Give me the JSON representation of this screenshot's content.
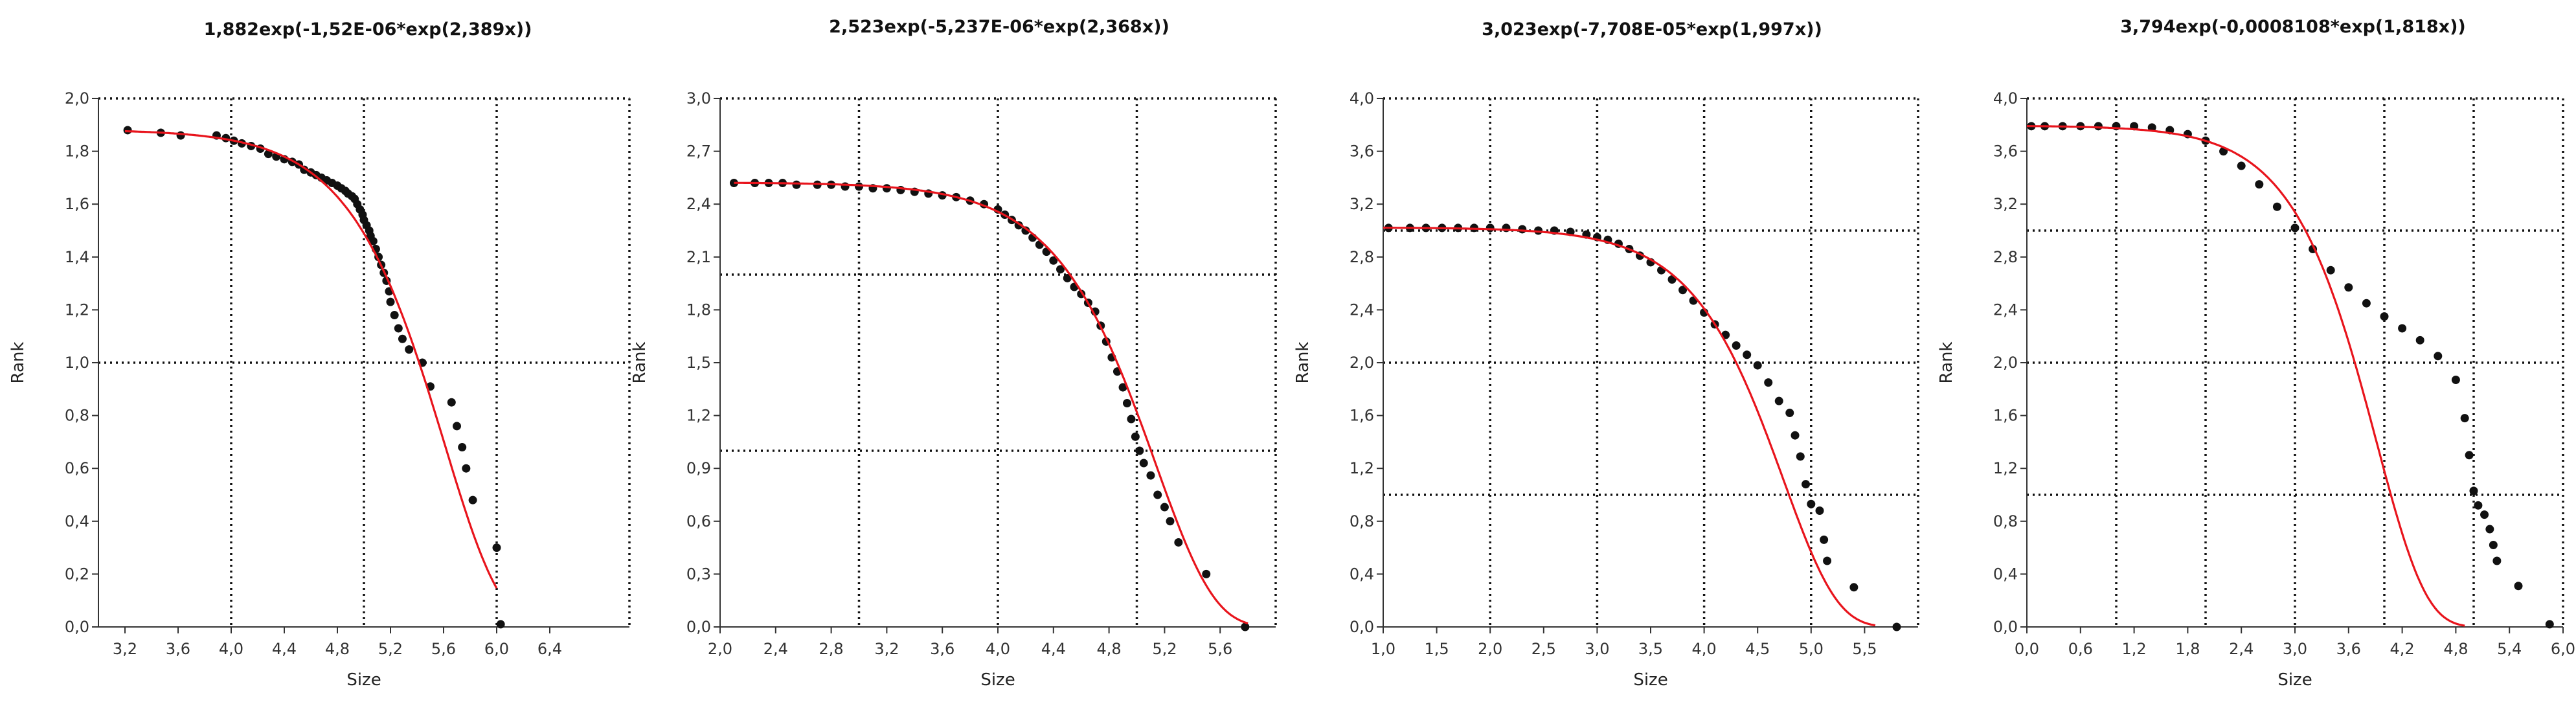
{
  "chart_data": [
    {
      "type": "scatter",
      "title": "1,882exp(-1,52E-06*exp(2,389x))",
      "xlabel": "Size",
      "ylabel": "Rank",
      "xlim": [
        3.0,
        7.0
      ],
      "ylim": [
        0.0,
        2.0
      ],
      "xticks": [
        "3,2",
        "3,6",
        "4,0",
        "4,4",
        "4,8",
        "5,2",
        "5,6",
        "6,0",
        "6,4"
      ],
      "yticks": [
        "0,0",
        "0,2",
        "0,4",
        "0,6",
        "0,8",
        "1,0",
        "1,2",
        "1,4",
        "1,6",
        "1,8",
        "2,0"
      ],
      "grid_x": [
        4.0,
        5.0,
        6.0
      ],
      "grid_y": [
        1.0
      ],
      "fit": {
        "name": "fit",
        "color": "#e8141c",
        "a": 1.882,
        "b": 1.52e-06,
        "c": 2.389,
        "x_range": [
          3.2,
          6.0
        ]
      },
      "series": [
        {
          "name": "observed",
          "color": "#111111",
          "points": [
            [
              3.22,
              1.88
            ],
            [
              3.47,
              1.87
            ],
            [
              3.62,
              1.86
            ],
            [
              3.89,
              1.86
            ],
            [
              3.96,
              1.85
            ],
            [
              4.02,
              1.84
            ],
            [
              4.08,
              1.83
            ],
            [
              4.15,
              1.82
            ],
            [
              4.22,
              1.81
            ],
            [
              4.28,
              1.79
            ],
            [
              4.34,
              1.78
            ],
            [
              4.4,
              1.77
            ],
            [
              4.46,
              1.76
            ],
            [
              4.51,
              1.75
            ],
            [
              4.55,
              1.73
            ],
            [
              4.6,
              1.72
            ],
            [
              4.64,
              1.71
            ],
            [
              4.68,
              1.7
            ],
            [
              4.72,
              1.69
            ],
            [
              4.76,
              1.68
            ],
            [
              4.8,
              1.67
            ],
            [
              4.83,
              1.66
            ],
            [
              4.86,
              1.65
            ],
            [
              4.88,
              1.64
            ],
            [
              4.91,
              1.63
            ],
            [
              4.93,
              1.62
            ],
            [
              4.95,
              1.6
            ],
            [
              4.97,
              1.58
            ],
            [
              4.99,
              1.56
            ],
            [
              5.0,
              1.54
            ],
            [
              5.02,
              1.52
            ],
            [
              5.04,
              1.5
            ],
            [
              5.05,
              1.48
            ],
            [
              5.07,
              1.46
            ],
            [
              5.09,
              1.43
            ],
            [
              5.11,
              1.4
            ],
            [
              5.13,
              1.37
            ],
            [
              5.15,
              1.34
            ],
            [
              5.17,
              1.31
            ],
            [
              5.19,
              1.27
            ],
            [
              5.2,
              1.23
            ],
            [
              5.23,
              1.18
            ],
            [
              5.26,
              1.13
            ],
            [
              5.29,
              1.09
            ],
            [
              5.34,
              1.05
            ],
            [
              5.44,
              1.0
            ],
            [
              5.5,
              0.91
            ],
            [
              5.66,
              0.85
            ],
            [
              5.7,
              0.76
            ],
            [
              5.74,
              0.68
            ],
            [
              5.77,
              0.6
            ],
            [
              5.82,
              0.48
            ],
            [
              6.0,
              0.3
            ],
            [
              6.03,
              0.01
            ]
          ]
        }
      ]
    },
    {
      "type": "scatter",
      "title": "2,523exp(-5,237E-06*exp(2,368x))",
      "xlabel": "Size",
      "ylabel": "Rank",
      "xlim": [
        2.0,
        6.0
      ],
      "ylim": [
        0.0,
        3.0
      ],
      "xticks": [
        "2,0",
        "2,4",
        "2,8",
        "3,2",
        "3,6",
        "4,0",
        "4,4",
        "4,8",
        "5,2",
        "5,6"
      ],
      "yticks": [
        "0,0",
        "0,3",
        "0,6",
        "0,9",
        "1,2",
        "1,5",
        "1,8",
        "2,1",
        "2,4",
        "2,7",
        "3,0"
      ],
      "grid_x": [
        3.0,
        4.0,
        5.0
      ],
      "grid_y": [
        1.0,
        2.0
      ],
      "fit": {
        "name": "fit",
        "color": "#e8141c",
        "a": 2.523,
        "b": 5.237e-06,
        "c": 2.368,
        "x_range": [
          2.1,
          5.8
        ]
      },
      "series": [
        {
          "name": "observed",
          "color": "#111111",
          "points": [
            [
              2.1,
              2.52
            ],
            [
              2.25,
              2.52
            ],
            [
              2.35,
              2.52
            ],
            [
              2.45,
              2.52
            ],
            [
              2.55,
              2.51
            ],
            [
              2.7,
              2.51
            ],
            [
              2.8,
              2.51
            ],
            [
              2.9,
              2.5
            ],
            [
              3.0,
              2.5
            ],
            [
              3.1,
              2.49
            ],
            [
              3.2,
              2.49
            ],
            [
              3.3,
              2.48
            ],
            [
              3.4,
              2.47
            ],
            [
              3.5,
              2.46
            ],
            [
              3.6,
              2.45
            ],
            [
              3.7,
              2.44
            ],
            [
              3.8,
              2.42
            ],
            [
              3.9,
              2.4
            ],
            [
              4.0,
              2.37
            ],
            [
              4.05,
              2.34
            ],
            [
              4.1,
              2.31
            ],
            [
              4.15,
              2.28
            ],
            [
              4.2,
              2.25
            ],
            [
              4.25,
              2.21
            ],
            [
              4.3,
              2.17
            ],
            [
              4.35,
              2.13
            ],
            [
              4.4,
              2.08
            ],
            [
              4.45,
              2.03
            ],
            [
              4.5,
              1.98
            ],
            [
              4.55,
              1.93
            ],
            [
              4.6,
              1.89
            ],
            [
              4.65,
              1.84
            ],
            [
              4.7,
              1.79
            ],
            [
              4.74,
              1.71
            ],
            [
              4.78,
              1.62
            ],
            [
              4.82,
              1.53
            ],
            [
              4.86,
              1.45
            ],
            [
              4.9,
              1.36
            ],
            [
              4.93,
              1.27
            ],
            [
              4.96,
              1.18
            ],
            [
              4.99,
              1.08
            ],
            [
              5.02,
              1.0
            ],
            [
              5.05,
              0.93
            ],
            [
              5.1,
              0.86
            ],
            [
              5.15,
              0.75
            ],
            [
              5.2,
              0.68
            ],
            [
              5.24,
              0.6
            ],
            [
              5.3,
              0.48
            ],
            [
              5.5,
              0.3
            ],
            [
              5.78,
              0.0
            ]
          ]
        }
      ]
    },
    {
      "type": "scatter",
      "title": "3,023exp(-7,708E-05*exp(1,997x))",
      "xlabel": "Size",
      "ylabel": "Rank",
      "xlim": [
        1.0,
        6.0
      ],
      "ylim": [
        0.0,
        4.0
      ],
      "xticks": [
        "1,0",
        "1,5",
        "2,0",
        "2,5",
        "3,0",
        "3,5",
        "4,0",
        "4,5",
        "5,0",
        "5,5"
      ],
      "yticks": [
        "0,0",
        "0,4",
        "0,8",
        "1,2",
        "1,6",
        "2,0",
        "2,4",
        "2,8",
        "3,2",
        "3,6",
        "4,0"
      ],
      "grid_x": [
        2.0,
        3.0,
        4.0,
        5.0
      ],
      "grid_y": [
        1.0,
        2.0,
        3.0
      ],
      "fit": {
        "name": "fit",
        "color": "#e8141c",
        "a": 3.023,
        "b": 7.708e-05,
        "c": 1.997,
        "x_range": [
          1.0,
          5.6
        ]
      },
      "series": [
        {
          "name": "observed",
          "color": "#111111",
          "points": [
            [
              1.05,
              3.02
            ],
            [
              1.25,
              3.02
            ],
            [
              1.4,
              3.02
            ],
            [
              1.55,
              3.02
            ],
            [
              1.7,
              3.02
            ],
            [
              1.85,
              3.02
            ],
            [
              2.0,
              3.02
            ],
            [
              2.15,
              3.02
            ],
            [
              2.3,
              3.01
            ],
            [
              2.45,
              3.0
            ],
            [
              2.6,
              3.0
            ],
            [
              2.75,
              2.99
            ],
            [
              2.9,
              2.97
            ],
            [
              3.0,
              2.95
            ],
            [
              3.1,
              2.93
            ],
            [
              3.2,
              2.9
            ],
            [
              3.3,
              2.86
            ],
            [
              3.4,
              2.81
            ],
            [
              3.5,
              2.76
            ],
            [
              3.6,
              2.7
            ],
            [
              3.7,
              2.63
            ],
            [
              3.8,
              2.55
            ],
            [
              3.9,
              2.47
            ],
            [
              4.0,
              2.38
            ],
            [
              4.1,
              2.29
            ],
            [
              4.2,
              2.21
            ],
            [
              4.3,
              2.13
            ],
            [
              4.4,
              2.06
            ],
            [
              4.5,
              1.98
            ],
            [
              4.6,
              1.85
            ],
            [
              4.7,
              1.71
            ],
            [
              4.8,
              1.62
            ],
            [
              4.85,
              1.45
            ],
            [
              4.9,
              1.29
            ],
            [
              4.95,
              1.08
            ],
            [
              5.0,
              0.93
            ],
            [
              5.08,
              0.88
            ],
            [
              5.12,
              0.66
            ],
            [
              5.15,
              0.5
            ],
            [
              5.4,
              0.3
            ],
            [
              5.8,
              0.0
            ]
          ]
        }
      ]
    },
    {
      "type": "scatter",
      "title": "3,794exp(-0,0008108*exp(1,818x))",
      "xlabel": "Size",
      "ylabel": "Rank",
      "xlim": [
        0.0,
        6.0
      ],
      "ylim": [
        0.0,
        4.0
      ],
      "xticks": [
        "0,0",
        "0,6",
        "1,2",
        "1,8",
        "2,4",
        "3,0",
        "3,6",
        "4,2",
        "4,8",
        "5,4",
        "6,0"
      ],
      "yticks": [
        "0,0",
        "0,4",
        "0,8",
        "1,2",
        "1,6",
        "2,0",
        "2,4",
        "2,8",
        "3,2",
        "3,6",
        "4,0"
      ],
      "grid_x": [
        1.0,
        2.0,
        3.0,
        4.0,
        5.0
      ],
      "grid_y": [
        1.0,
        2.0,
        3.0
      ],
      "fit": {
        "name": "fit",
        "color": "#e8141c",
        "a": 3.794,
        "b": 0.0008108,
        "c": 1.818,
        "x_range": [
          0.0,
          4.9
        ]
      },
      "series": [
        {
          "name": "observed",
          "color": "#111111",
          "points": [
            [
              0.05,
              3.79
            ],
            [
              0.2,
              3.79
            ],
            [
              0.4,
              3.79
            ],
            [
              0.6,
              3.79
            ],
            [
              0.8,
              3.79
            ],
            [
              1.0,
              3.79
            ],
            [
              1.2,
              3.79
            ],
            [
              1.4,
              3.78
            ],
            [
              1.6,
              3.76
            ],
            [
              1.8,
              3.73
            ],
            [
              2.0,
              3.68
            ],
            [
              2.2,
              3.6
            ],
            [
              2.4,
              3.49
            ],
            [
              2.6,
              3.35
            ],
            [
              2.8,
              3.18
            ],
            [
              3.0,
              3.02
            ],
            [
              3.2,
              2.86
            ],
            [
              3.4,
              2.7
            ],
            [
              3.6,
              2.57
            ],
            [
              3.8,
              2.45
            ],
            [
              4.0,
              2.35
            ],
            [
              4.2,
              2.26
            ],
            [
              4.4,
              2.17
            ],
            [
              4.6,
              2.05
            ],
            [
              4.8,
              1.87
            ],
            [
              4.9,
              1.58
            ],
            [
              4.95,
              1.3
            ],
            [
              5.0,
              1.03
            ],
            [
              5.05,
              0.92
            ],
            [
              5.12,
              0.85
            ],
            [
              5.18,
              0.74
            ],
            [
              5.22,
              0.62
            ],
            [
              5.26,
              0.5
            ],
            [
              5.5,
              0.31
            ],
            [
              5.85,
              0.02
            ]
          ]
        }
      ]
    }
  ]
}
